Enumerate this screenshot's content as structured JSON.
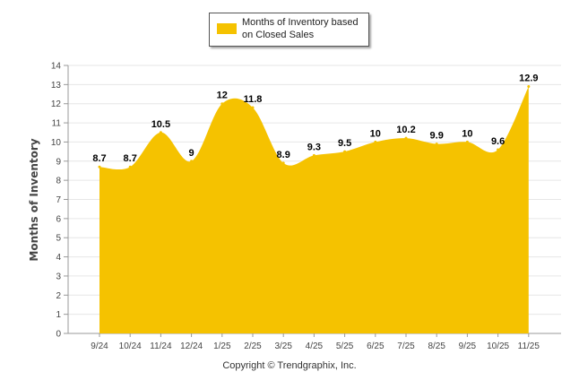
{
  "chart_data": {
    "type": "area",
    "categories": [
      "9/24",
      "10/24",
      "11/24",
      "12/24",
      "1/25",
      "2/25",
      "3/25",
      "4/25",
      "5/25",
      "6/25",
      "7/25",
      "8/25",
      "9/25",
      "10/25",
      "11/25"
    ],
    "series": [
      {
        "name": "Months of Inventory based on Closed Sales",
        "values": [
          8.7,
          8.7,
          10.5,
          9,
          12,
          11.8,
          8.9,
          9.3,
          9.5,
          10,
          10.2,
          9.9,
          10,
          9.6,
          12.9
        ],
        "color": "#F5C200"
      }
    ],
    "ylabel": "Months of Inventory",
    "ylim": [
      0,
      14
    ],
    "yticks": [
      0,
      1,
      2,
      3,
      4,
      5,
      6,
      7,
      8,
      9,
      10,
      11,
      12,
      13,
      14
    ],
    "grid": true,
    "legend_placement": "top-center",
    "footer": "Copyright © Trendgraphix, Inc."
  }
}
